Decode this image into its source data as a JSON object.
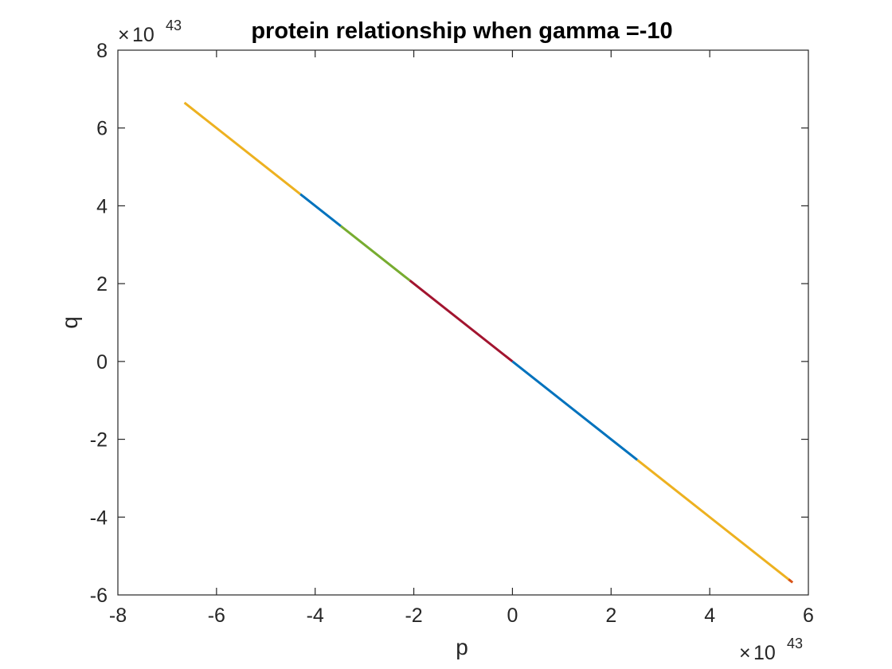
{
  "chart_data": {
    "type": "line",
    "title": "protein relationship when gamma =-10",
    "xlabel": "p",
    "ylabel": "q",
    "x_multiplier": {
      "times": "×",
      "base": "10",
      "exponent": "43"
    },
    "y_multiplier": {
      "times": "×",
      "base": "10",
      "exponent": "43"
    },
    "xlim": [
      -8,
      6
    ],
    "ylim": [
      -6,
      8
    ],
    "xticks": [
      -8,
      -6,
      -4,
      -2,
      0,
      2,
      4,
      6
    ],
    "yticks": [
      -6,
      -4,
      -2,
      0,
      2,
      4,
      6,
      8
    ],
    "grid": false,
    "series": [
      {
        "color": "#EDB120",
        "x": [
          -6.65,
          -4.3
        ],
        "y": [
          6.65,
          4.3
        ]
      },
      {
        "color": "#0072BD",
        "x": [
          -4.3,
          -3.48
        ],
        "y": [
          4.3,
          3.48
        ]
      },
      {
        "color": "#77AC30",
        "x": [
          -3.48,
          -2.08
        ],
        "y": [
          3.48,
          2.08
        ]
      },
      {
        "color": "#A2142F",
        "x": [
          -2.08,
          0
        ],
        "y": [
          2.08,
          0
        ]
      },
      {
        "color": "#0072BD",
        "x": [
          0,
          2.53
        ],
        "y": [
          0,
          -2.53
        ]
      },
      {
        "color": "#EDB120",
        "x": [
          2.53,
          5.65
        ],
        "y": [
          -2.53,
          -5.65
        ]
      },
      {
        "color": "#D95319",
        "x": [
          5.6,
          5.68
        ],
        "y": [
          -5.6,
          -5.68
        ]
      }
    ]
  }
}
